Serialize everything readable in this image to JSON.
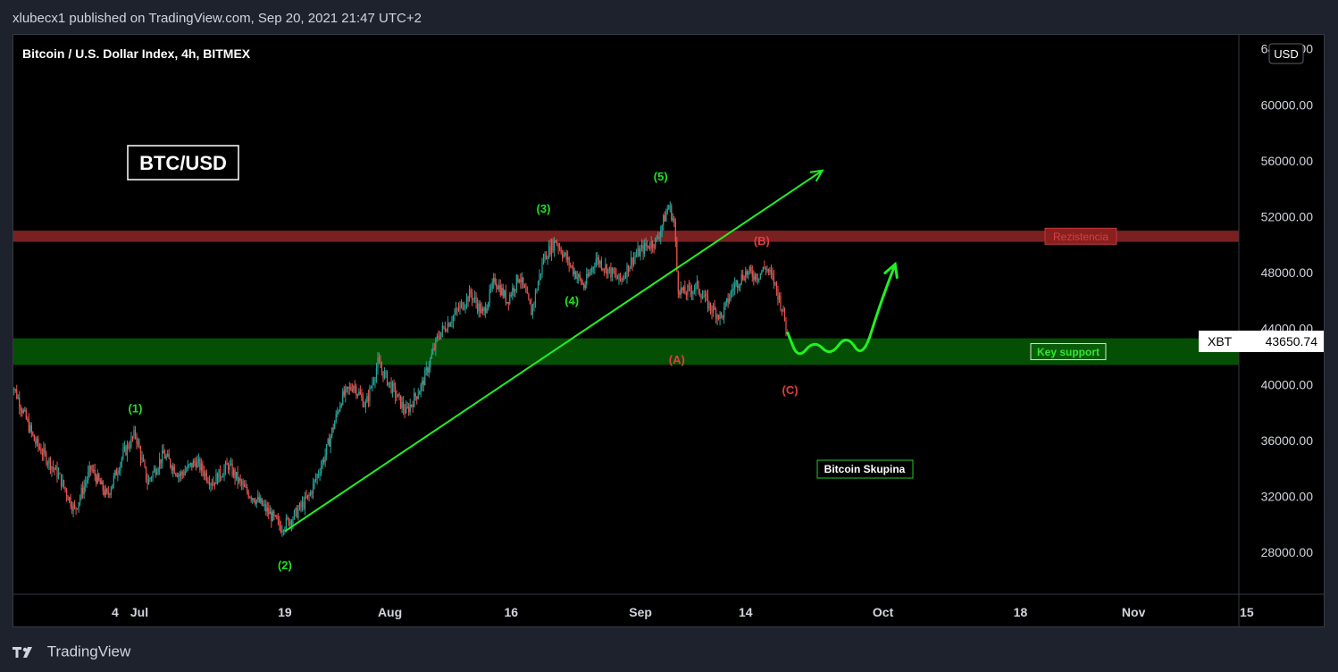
{
  "header": {
    "publisher_line": "xlubecx1 published on TradingView.com, Sep 20, 2021 21:47 UTC+2"
  },
  "footer": {
    "brand": "TradingView"
  },
  "chart_data": {
    "type": "candlestick",
    "title": "Bitcoin / U.S. Dollar Index, 4h, BITMEX",
    "currency": "USD",
    "symbol_tag": "XBT",
    "last_price": "43650.74",
    "ylim": [
      25000,
      65000
    ],
    "y_ticks": [
      28000,
      32000,
      36000,
      40000,
      44000,
      48000,
      52000,
      56000,
      60000,
      64000
    ],
    "y_tick_labels": [
      "28000.00",
      "32000.00",
      "36000.00",
      "40000.00",
      "44000.00",
      "48000.00",
      "52000.00",
      "56000.00",
      "60000.00",
      "64000.00"
    ],
    "x_ticks": [
      {
        "label": "4",
        "day": -3
      },
      {
        "label": "Jul",
        "day": 0
      },
      {
        "label": "19",
        "day": 18
      },
      {
        "label": "Aug",
        "day": 31
      },
      {
        "label": "16",
        "day": 46
      },
      {
        "label": "Sep",
        "day": 62
      },
      {
        "label": "14",
        "day": 75
      },
      {
        "label": "Oct",
        "day": 92
      },
      {
        "label": "18",
        "day": 109
      },
      {
        "label": "Nov",
        "day": 123
      },
      {
        "label": "15",
        "day": 137
      }
    ],
    "price_path": [
      {
        "day": -16,
        "price": 40500
      },
      {
        "day": -13,
        "price": 36000
      },
      {
        "day": -10,
        "price": 33500
      },
      {
        "day": -8,
        "price": 31000
      },
      {
        "day": -6,
        "price": 34000
      },
      {
        "day": -4,
        "price": 32000
      },
      {
        "day": -2,
        "price": 35000
      },
      {
        "day": -0.5,
        "price": 36500
      },
      {
        "day": 1,
        "price": 33000
      },
      {
        "day": 3,
        "price": 35000
      },
      {
        "day": 5,
        "price": 33500
      },
      {
        "day": 7,
        "price": 34500
      },
      {
        "day": 9,
        "price": 33000
      },
      {
        "day": 11,
        "price": 34200
      },
      {
        "day": 13,
        "price": 32500
      },
      {
        "day": 15,
        "price": 31500
      },
      {
        "day": 17.5,
        "price": 29800
      },
      {
        "day": 19,
        "price": 30500
      },
      {
        "day": 21,
        "price": 32000
      },
      {
        "day": 23,
        "price": 35000
      },
      {
        "day": 25,
        "price": 39000
      },
      {
        "day": 26.5,
        "price": 40000
      },
      {
        "day": 28,
        "price": 38500
      },
      {
        "day": 29.5,
        "price": 41500
      },
      {
        "day": 31,
        "price": 40000
      },
      {
        "day": 33,
        "price": 38000
      },
      {
        "day": 35,
        "price": 40000
      },
      {
        "day": 37,
        "price": 43500
      },
      {
        "day": 39,
        "price": 45000
      },
      {
        "day": 41,
        "price": 46500
      },
      {
        "day": 42.5,
        "price": 45000
      },
      {
        "day": 44,
        "price": 47500
      },
      {
        "day": 45.5,
        "price": 46000
      },
      {
        "day": 47,
        "price": 47800
      },
      {
        "day": 48.5,
        "price": 45200
      },
      {
        "day": 50,
        "price": 49000
      },
      {
        "day": 51.5,
        "price": 50300
      },
      {
        "day": 53,
        "price": 48800
      },
      {
        "day": 55,
        "price": 47000
      },
      {
        "day": 56.5,
        "price": 49000
      },
      {
        "day": 58,
        "price": 48200
      },
      {
        "day": 59.5,
        "price": 47400
      },
      {
        "day": 61,
        "price": 49000
      },
      {
        "day": 62.5,
        "price": 49800
      },
      {
        "day": 64,
        "price": 50300
      },
      {
        "day": 65.5,
        "price": 52800
      },
      {
        "day": 66.2,
        "price": 51500
      },
      {
        "day": 66.6,
        "price": 47000
      },
      {
        "day": 67.4,
        "price": 46500
      },
      {
        "day": 69,
        "price": 47000
      },
      {
        "day": 70.5,
        "price": 45600
      },
      {
        "day": 72,
        "price": 44800
      },
      {
        "day": 73.5,
        "price": 47000
      },
      {
        "day": 75,
        "price": 48000
      },
      {
        "day": 76.5,
        "price": 47800
      },
      {
        "day": 77.5,
        "price": 48400
      },
      {
        "day": 78.5,
        "price": 47400
      },
      {
        "day": 79.5,
        "price": 45500
      },
      {
        "day": 80.2,
        "price": 43650
      }
    ],
    "zones": [
      {
        "name": "Rezistencia",
        "from": 50200,
        "to": 51000,
        "color": "#7a2020",
        "label_color": "#d64040"
      },
      {
        "name": "Key support",
        "from": 41400,
        "to": 43300,
        "color": "#054f05",
        "label_color": "#32e632"
      }
    ],
    "trendline": {
      "from": {
        "day": 18,
        "price": 29500
      },
      "to": {
        "day": 84.5,
        "price": 55300
      }
    },
    "projection": [
      {
        "day": 80.2,
        "price": 43700
      },
      {
        "day": 81.5,
        "price": 41800
      },
      {
        "day": 83.5,
        "price": 43200
      },
      {
        "day": 85.5,
        "price": 42000
      },
      {
        "day": 87.5,
        "price": 43600
      },
      {
        "day": 89.5,
        "price": 41800
      },
      {
        "day": 91.5,
        "price": 45500
      },
      {
        "day": 93.5,
        "price": 48600
      }
    ],
    "wave_labels": [
      {
        "text": "(1)",
        "day": -0.5,
        "price": 38000,
        "color": "#20e020"
      },
      {
        "text": "(2)",
        "day": 18,
        "price": 26800,
        "color": "#20e020"
      },
      {
        "text": "(3)",
        "day": 50,
        "price": 52300,
        "color": "#20e020"
      },
      {
        "text": "(4)",
        "day": 53.5,
        "price": 45700,
        "color": "#20e020"
      },
      {
        "text": "(5)",
        "day": 64.5,
        "price": 54600,
        "color": "#20e020"
      },
      {
        "text": "(A)",
        "day": 66.5,
        "price": 41500,
        "color": "#e04040"
      },
      {
        "text": "(B)",
        "day": 77,
        "price": 50000,
        "color": "#e04040"
      },
      {
        "text": "(C)",
        "day": 80.5,
        "price": 39300,
        "color": "#e04040"
      }
    ],
    "annotations": [
      {
        "text": "BTC/USD"
      },
      {
        "text": "Bitcoin Skupina"
      }
    ],
    "colors": {
      "up": "#26a69a",
      "down": "#ef5350",
      "trend": "#22f022",
      "background": "#000000"
    }
  }
}
